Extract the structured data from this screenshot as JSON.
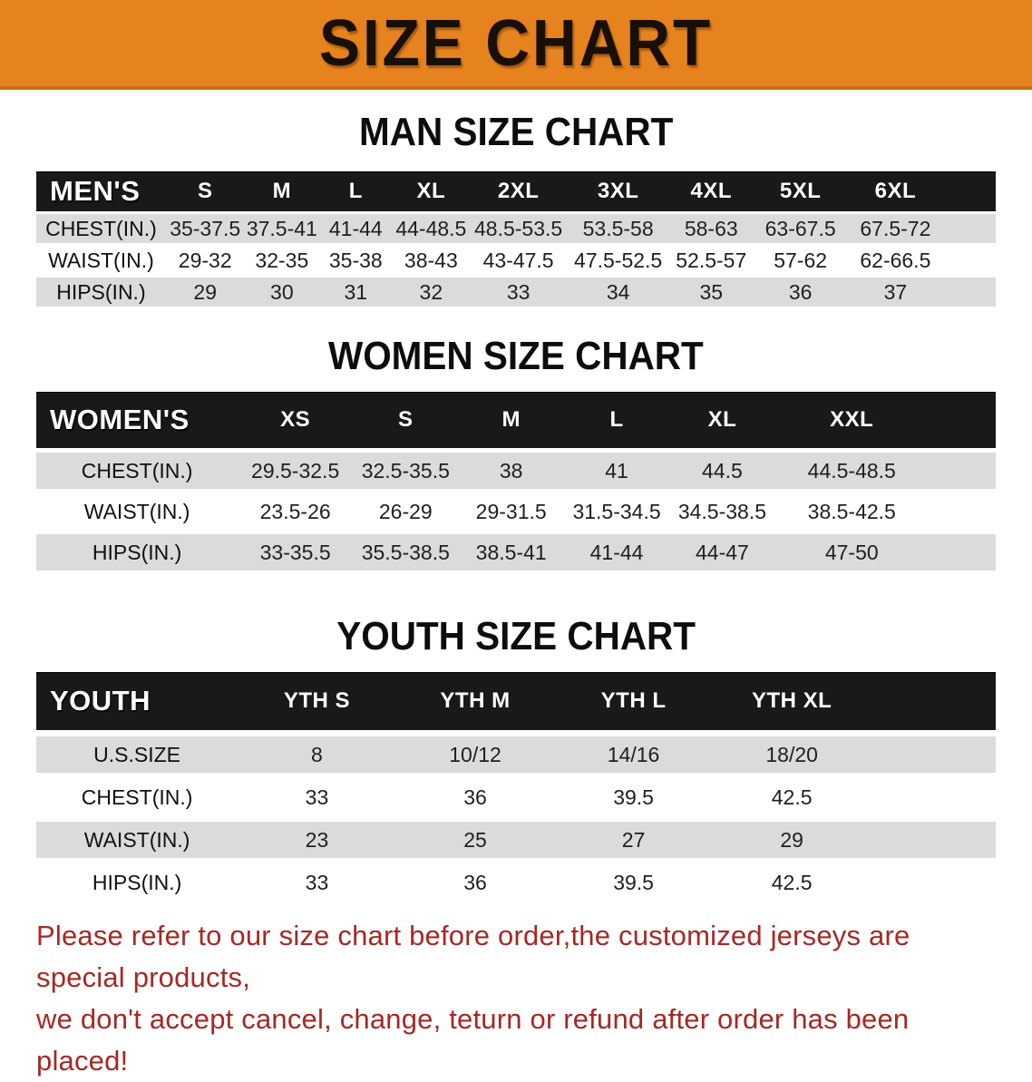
{
  "banner": {
    "title": "SIZE CHART"
  },
  "colors": {
    "banner_bg": "#E6831E",
    "banner_edge": "#C96F12",
    "table_header_bg": "#191919",
    "row_stripe": "#DBDBDB",
    "footer_text": "#A62824"
  },
  "sections": [
    {
      "heading": "MAN SIZE CHART",
      "table": {
        "label": "MEN'S",
        "sizes": [
          "S",
          "M",
          "L",
          "XL",
          "2XL",
          "3XL",
          "4XL",
          "5XL",
          "6XL"
        ],
        "rows": [
          {
            "label": "CHEST(IN.)",
            "values": [
              "35-37.5",
              "37.5-41",
              "41-44",
              "44-48.5",
              "48.5-53.5",
              "53.5-58",
              "58-63",
              "63-67.5",
              "67.5-72"
            ]
          },
          {
            "label": "WAIST(IN.)",
            "values": [
              "29-32",
              "32-35",
              "35-38",
              "38-43",
              "43-47.5",
              "47.5-52.5",
              "52.5-57",
              "57-62",
              "62-66.5"
            ]
          },
          {
            "label": "HIPS(IN.)",
            "values": [
              "29",
              "30",
              "31",
              "32",
              "33",
              "34",
              "35",
              "36",
              "37"
            ]
          }
        ]
      }
    },
    {
      "heading": "WOMEN SIZE CHART",
      "table": {
        "label": "WOMEN'S",
        "sizes": [
          "XS",
          "S",
          "M",
          "L",
          "XL",
          "XXL"
        ],
        "rows": [
          {
            "label": "CHEST(IN.)",
            "values": [
              "29.5-32.5",
              "32.5-35.5",
              "38",
              "41",
              "44.5",
              "44.5-48.5"
            ]
          },
          {
            "label": "WAIST(IN.)",
            "values": [
              "23.5-26",
              "26-29",
              "29-31.5",
              "31.5-34.5",
              "34.5-38.5",
              "38.5-42.5"
            ]
          },
          {
            "label": "HIPS(IN.)",
            "values": [
              "33-35.5",
              "35.5-38.5",
              "38.5-41",
              "41-44",
              "44-47",
              "47-50"
            ]
          }
        ]
      }
    },
    {
      "heading": "YOUTH SIZE CHART",
      "table": {
        "label": "YOUTH",
        "sizes": [
          "YTH S",
          "YTH M",
          "YTH L",
          "YTH XL"
        ],
        "rows": [
          {
            "label": "U.S.SIZE",
            "values": [
              "8",
              "10/12",
              "14/16",
              "18/20"
            ]
          },
          {
            "label": "CHEST(IN.)",
            "values": [
              "33",
              "36",
              "39.5",
              "42.5"
            ]
          },
          {
            "label": "WAIST(IN.)",
            "values": [
              "23",
              "25",
              "27",
              "29"
            ]
          },
          {
            "label": "HIPS(IN.)",
            "values": [
              "33",
              "36",
              "39.5",
              "42.5"
            ]
          }
        ]
      }
    }
  ],
  "footer": {
    "line1": "Please refer to our size chart before order,the customized jerseys are special products,",
    "line2": "we don't accept cancel, change, teturn or refund after order has been placed!"
  }
}
